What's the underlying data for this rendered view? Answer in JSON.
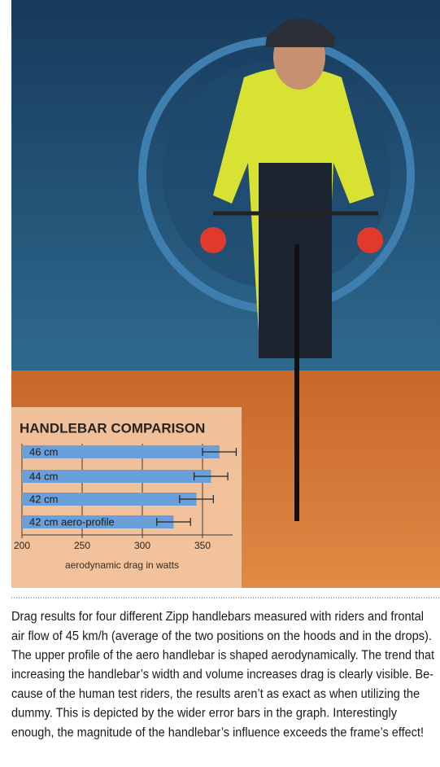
{
  "chart_data": {
    "type": "bar",
    "orientation": "horizontal",
    "title": "HANDLEBAR COMPARISON",
    "x_label": "aerodynamic drag in watts",
    "categories": [
      "46 cm",
      "44 cm",
      "42 cm",
      "42 cm aero-profile"
    ],
    "values": [
      364,
      357,
      345,
      326
    ],
    "errors": [
      14,
      14,
      14,
      14
    ],
    "color": "#6a9fd9",
    "xlim": [
      200,
      375
    ],
    "xticks": [
      200,
      250,
      300,
      350
    ],
    "grid": true
  },
  "caption": {
    "lines": [
      "Drag results for four different Zipp handlebars measured with riders and frontal",
      "air flow of 45 km/h (average of the two positions on the hoods and in the drops).",
      "The upper profile of the aero handlebar is shaped aerodynamically. The trend that",
      "increasing the handlebar’s width and volume increases drag is clearly visible. Be-",
      "cause of the human test riders, the results aren’t as exact as when utilizing the",
      "dummy. This is depicted by the wider error bars in the graph. Interestingly",
      "enough, the magnitude of the handlebar’s influence exceeds the frame’s effect!"
    ]
  }
}
